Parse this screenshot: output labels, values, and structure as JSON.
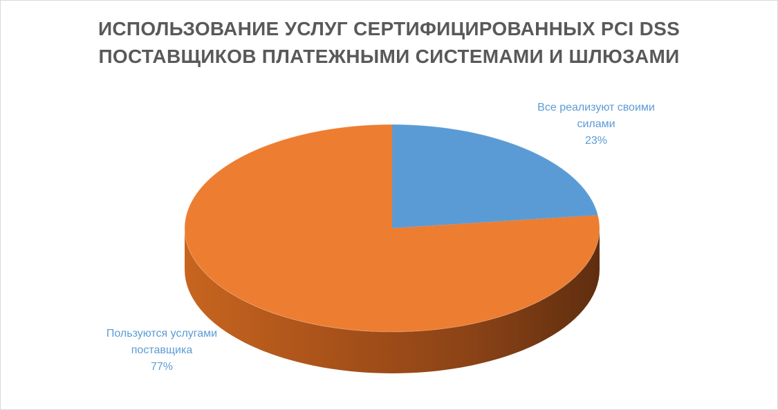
{
  "chart_data": {
    "type": "pie",
    "title_lines": [
      "ИСПОЛЬЗОВАНИЕ УСЛУГ СЕРТИФИЦИРОВАННЫХ PCI DSS",
      "ПОСТАВЩИКОВ ПЛАТЕЖНЫМИ СИСТЕМАМИ И ШЛЮЗАМИ"
    ],
    "slices": [
      {
        "label_lines": [
          "Все реализуют своими",
          "силами"
        ],
        "percent_text": "23%",
        "value": 23,
        "color": "#5b9bd5"
      },
      {
        "label_lines": [
          "Пользуются услугами",
          "поставщика"
        ],
        "percent_text": "77%",
        "value": 77,
        "color": "#ed7d31"
      }
    ],
    "style": "3d-pie",
    "legend": "none",
    "label_color": "#5b9bd5"
  }
}
